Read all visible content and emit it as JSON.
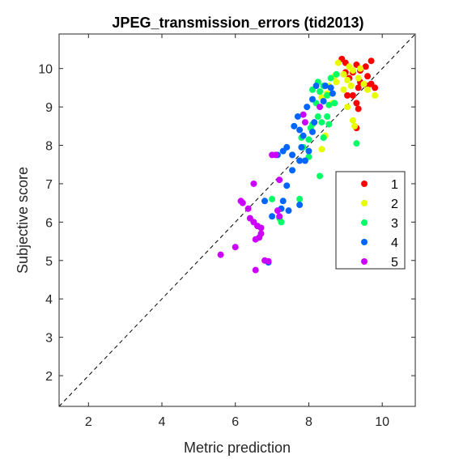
{
  "chart_data": {
    "type": "scatter",
    "title": "JPEG_transmission_errors (tid2013)",
    "xlabel": "Metric prediction",
    "ylabel": "Subjective score",
    "xlim": [
      1.2,
      10.9
    ],
    "ylim": [
      1.2,
      10.9
    ],
    "xticks": [
      2,
      4,
      6,
      8,
      10
    ],
    "yticks": [
      2,
      3,
      4,
      5,
      6,
      7,
      8,
      9,
      10
    ],
    "grid": false,
    "box": true,
    "reference_line": {
      "style": "dashed",
      "color": "#000000",
      "from": [
        1.2,
        1.2
      ],
      "to": [
        10.9,
        10.9
      ]
    },
    "legend": {
      "position": "right",
      "entries": [
        "1",
        "2",
        "3",
        "4",
        "5"
      ]
    },
    "series": [
      {
        "name": "1",
        "color": "#ff0000",
        "points": [
          [
            8.9,
            10.25
          ],
          [
            9.0,
            10.15
          ],
          [
            9.3,
            10.1
          ],
          [
            9.7,
            10.2
          ],
          [
            9.55,
            10.05
          ],
          [
            9.2,
            9.9
          ],
          [
            9.4,
            9.95
          ],
          [
            9.6,
            9.8
          ],
          [
            9.1,
            9.75
          ],
          [
            9.4,
            9.65
          ],
          [
            9.6,
            9.55
          ],
          [
            9.8,
            9.5
          ],
          [
            9.35,
            9.5
          ],
          [
            9.2,
            9.3
          ],
          [
            9.05,
            9.3
          ],
          [
            9.3,
            9.1
          ],
          [
            9.35,
            8.95
          ],
          [
            9.3,
            8.45
          ],
          [
            9.7,
            9.6
          ],
          [
            9.0,
            9.9
          ]
        ]
      },
      {
        "name": "2",
        "color": "#e5ff00",
        "points": [
          [
            8.8,
            10.15
          ],
          [
            9.1,
            10.05
          ],
          [
            9.4,
            10.0
          ],
          [
            9.2,
            9.95
          ],
          [
            8.95,
            9.85
          ],
          [
            9.35,
            9.75
          ],
          [
            8.7,
            9.8
          ],
          [
            9.05,
            9.7
          ],
          [
            8.75,
            9.65
          ],
          [
            9.5,
            9.6
          ],
          [
            8.55,
            9.55
          ],
          [
            9.15,
            9.55
          ],
          [
            8.95,
            9.45
          ],
          [
            9.8,
            9.3
          ],
          [
            9.6,
            9.45
          ],
          [
            8.5,
            9.35
          ],
          [
            8.35,
            9.25
          ],
          [
            8.65,
            9.1
          ],
          [
            9.05,
            9.0
          ],
          [
            9.2,
            8.65
          ],
          [
            9.25,
            8.5
          ],
          [
            8.35,
            7.9
          ],
          [
            8.45,
            8.25
          ]
        ]
      },
      {
        "name": "3",
        "color": "#00ff66",
        "points": [
          [
            8.75,
            9.85
          ],
          [
            8.6,
            9.75
          ],
          [
            8.25,
            9.65
          ],
          [
            8.4,
            9.55
          ],
          [
            8.1,
            9.45
          ],
          [
            8.3,
            9.4
          ],
          [
            8.5,
            9.3
          ],
          [
            8.2,
            9.1
          ],
          [
            8.55,
            9.05
          ],
          [
            8.7,
            9.1
          ],
          [
            8.25,
            8.75
          ],
          [
            8.5,
            8.75
          ],
          [
            8.35,
            8.6
          ],
          [
            8.1,
            8.55
          ],
          [
            8.05,
            8.45
          ],
          [
            8.55,
            8.55
          ],
          [
            7.8,
            8.2
          ],
          [
            8.0,
            8.15
          ],
          [
            8.4,
            8.2
          ],
          [
            7.85,
            7.95
          ],
          [
            8.0,
            7.7
          ],
          [
            8.3,
            7.2
          ],
          [
            7.75,
            6.6
          ],
          [
            7.0,
            6.6
          ],
          [
            7.25,
            6.0
          ],
          [
            7.2,
            6.1
          ],
          [
            9.3,
            8.05
          ]
        ]
      },
      {
        "name": "4",
        "color": "#0066ff",
        "points": [
          [
            8.2,
            9.55
          ],
          [
            8.6,
            9.5
          ],
          [
            8.45,
            9.55
          ],
          [
            8.65,
            9.35
          ],
          [
            8.1,
            9.2
          ],
          [
            8.4,
            9.15
          ],
          [
            7.95,
            9.0
          ],
          [
            7.7,
            8.75
          ],
          [
            8.15,
            8.6
          ],
          [
            7.6,
            8.5
          ],
          [
            7.75,
            8.4
          ],
          [
            7.85,
            8.25
          ],
          [
            8.1,
            8.35
          ],
          [
            7.8,
            7.95
          ],
          [
            7.4,
            7.95
          ],
          [
            8.0,
            7.85
          ],
          [
            7.3,
            7.85
          ],
          [
            7.55,
            7.75
          ],
          [
            7.75,
            7.6
          ],
          [
            7.9,
            7.6
          ],
          [
            7.15,
            7.75
          ],
          [
            7.55,
            7.35
          ],
          [
            7.4,
            6.95
          ],
          [
            7.3,
            6.55
          ],
          [
            6.8,
            6.55
          ],
          [
            7.75,
            6.45
          ],
          [
            7.25,
            6.35
          ],
          [
            7.45,
            6.3
          ],
          [
            7.0,
            6.15
          ],
          [
            6.9,
            4.95
          ]
        ]
      },
      {
        "name": "5",
        "color": "#cc00ff",
        "points": [
          [
            7.85,
            8.8
          ],
          [
            8.3,
            9.0
          ],
          [
            7.9,
            8.6
          ],
          [
            7.1,
            7.75
          ],
          [
            7.0,
            7.75
          ],
          [
            7.2,
            7.1
          ],
          [
            6.5,
            7.0
          ],
          [
            6.15,
            6.55
          ],
          [
            6.2,
            6.5
          ],
          [
            6.35,
            6.35
          ],
          [
            6.5,
            6.0
          ],
          [
            6.4,
            6.1
          ],
          [
            6.6,
            5.9
          ],
          [
            6.7,
            5.85
          ],
          [
            6.7,
            5.7
          ],
          [
            6.55,
            5.55
          ],
          [
            6.65,
            5.6
          ],
          [
            6.0,
            5.35
          ],
          [
            5.6,
            5.15
          ],
          [
            6.8,
            5.0
          ],
          [
            6.9,
            4.98
          ],
          [
            6.55,
            4.75
          ],
          [
            7.15,
            6.3
          ],
          [
            7.2,
            6.15
          ]
        ]
      }
    ]
  }
}
